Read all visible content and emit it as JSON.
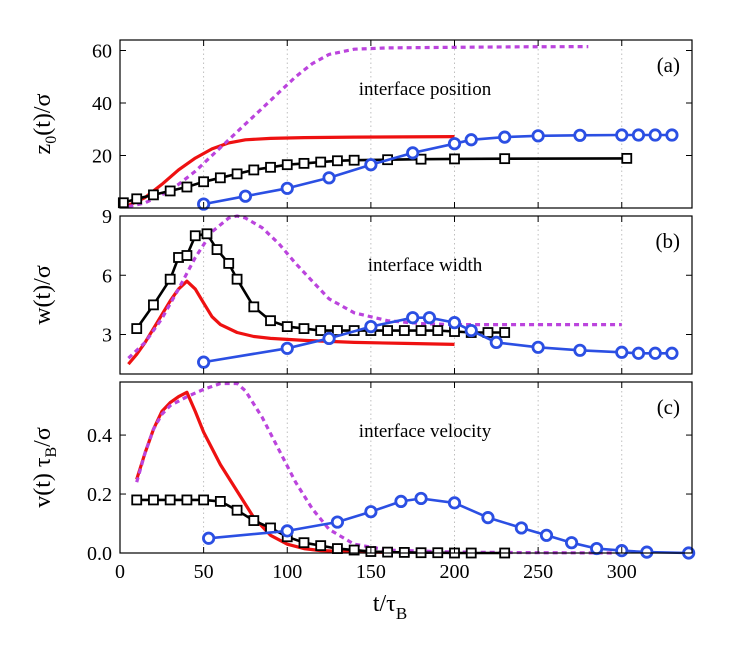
{
  "chart_data": {
    "type": "line",
    "xlabel": "t/τ",
    "xlabel_sub": "B",
    "xlim": [
      0,
      342
    ],
    "x_ticks": [
      0,
      50,
      100,
      150,
      200,
      250,
      300
    ],
    "panels": [
      {
        "tag": "(a)",
        "annotation": "interface position",
        "ylabel": "z",
        "ylabel_sub": "0",
        "ylabel_rest": "(t)/σ",
        "ylim": [
          0,
          64
        ],
        "y_ticks": [
          20,
          40,
          60
        ],
        "series": [
          {
            "name": "red",
            "color": "#ee1111",
            "style": "solid",
            "marker": "none",
            "x": [
              5,
              15,
              25,
              35,
              45,
              55,
              65,
              75,
              90,
              110,
              140,
              170,
              200
            ],
            "y": [
              1,
              4,
              9,
              14.5,
              19,
              22.5,
              24.8,
              26,
              26.5,
              26.8,
              27.0,
              27.1,
              27.2
            ]
          },
          {
            "name": "magenta-dashed",
            "color": "#bb44dd",
            "style": "dashed",
            "marker": "none",
            "x": [
              5,
              15,
              25,
              35,
              45,
              55,
              65,
              75,
              85,
              95,
              105,
              115,
              125,
              140,
              160,
              200,
              240,
              280
            ],
            "y": [
              0.5,
              2,
              5,
              9,
              14,
              20,
              26,
              32,
              38,
              44,
              50,
              55,
              58.5,
              60.5,
              61,
              61.2,
              61.4,
              61.5
            ]
          },
          {
            "name": "black-squares",
            "color": "#000000",
            "style": "solid",
            "marker": "square",
            "x": [
              2,
              10,
              20,
              30,
              40,
              50,
              60,
              70,
              80,
              90,
              100,
              110,
              120,
              130,
              140,
              160,
              180,
              200,
              230,
              303
            ],
            "y": [
              2,
              3.5,
              5,
              6.5,
              8,
              10,
              11.5,
              13,
              14.5,
              15.5,
              16.5,
              17,
              17.5,
              18,
              18.2,
              18.4,
              18.6,
              18.7,
              18.8,
              18.9
            ]
          },
          {
            "name": "blue-circles",
            "color": "#2b4fe3",
            "style": "solid",
            "marker": "circle",
            "x": [
              50,
              75,
              100,
              125,
              150,
              175,
              200,
              210,
              230,
              250,
              275,
              300,
              310,
              320,
              330
            ],
            "y": [
              1.5,
              4.5,
              7.5,
              11.5,
              16.5,
              21,
              24.5,
              26,
              27,
              27.5,
              27.7,
              27.8,
              27.8,
              27.8,
              27.8
            ]
          }
        ]
      },
      {
        "tag": "(b)",
        "annotation": "interface width",
        "ylabel": "w(t)/σ",
        "ylim": [
          1.0,
          9.0
        ],
        "y_ticks": [
          3,
          6,
          9
        ],
        "series": [
          {
            "name": "red",
            "color": "#ee1111",
            "style": "solid",
            "marker": "none",
            "x": [
              5,
              10,
              15,
              20,
              25,
              30,
              35,
              40,
              45,
              50,
              55,
              60,
              70,
              80,
              90,
              110,
              140,
              170,
              200
            ],
            "y": [
              1.5,
              2.0,
              2.6,
              3.3,
              4.0,
              4.7,
              5.3,
              5.7,
              5.3,
              4.6,
              3.9,
              3.5,
              3.1,
              2.9,
              2.8,
              2.7,
              2.6,
              2.55,
              2.5
            ]
          },
          {
            "name": "magenta-dashed",
            "color": "#bb44dd",
            "style": "dashed",
            "marker": "none",
            "x": [
              5,
              15,
              25,
              35,
              45,
              55,
              65,
              70,
              75,
              85,
              95,
              105,
              115,
              125,
              140,
              160,
              180,
              200,
              250,
              300
            ],
            "y": [
              1.8,
              2.6,
              3.8,
              5.3,
              6.9,
              8.2,
              8.9,
              9.0,
              8.9,
              8.4,
              7.6,
              6.6,
              5.7,
              4.8,
              4.1,
              3.7,
              3.55,
              3.5,
              3.5,
              3.5
            ]
          },
          {
            "name": "black-squares",
            "color": "#000000",
            "style": "solid",
            "marker": "square",
            "x": [
              10,
              20,
              30,
              35,
              40,
              45,
              52,
              58,
              65,
              70,
              80,
              90,
              100,
              110,
              120,
              130,
              140,
              150,
              160,
              170,
              180,
              190,
              200,
              210,
              220,
              230
            ],
            "y": [
              3.3,
              4.5,
              5.8,
              6.9,
              7.0,
              8.0,
              8.1,
              7.3,
              6.6,
              5.8,
              4.4,
              3.7,
              3.4,
              3.3,
              3.2,
              3.2,
              3.2,
              3.2,
              3.2,
              3.2,
              3.2,
              3.2,
              3.15,
              3.1,
              3.1,
              3.1
            ]
          },
          {
            "name": "blue-circles",
            "color": "#2b4fe3",
            "style": "solid",
            "marker": "circle",
            "x": [
              50,
              100,
              125,
              150,
              175,
              185,
              200,
              210,
              225,
              250,
              275,
              300,
              310,
              320,
              330
            ],
            "y": [
              1.6,
              2.3,
              2.8,
              3.4,
              3.85,
              3.85,
              3.6,
              3.2,
              2.6,
              2.35,
              2.2,
              2.1,
              2.05,
              2.05,
              2.05
            ]
          }
        ]
      },
      {
        "tag": "(c)",
        "annotation": "interface velocity",
        "ylabel": "v(t) τ",
        "ylabel_sub": "B",
        "ylabel_rest": "/σ",
        "ylim": [
          0,
          0.58
        ],
        "y_ticks": [
          0.0,
          0.2,
          0.4
        ],
        "y_tick_labels": [
          "0.0",
          "0.2",
          "0.4"
        ],
        "series": [
          {
            "name": "red",
            "color": "#ee1111",
            "style": "solid",
            "marker": "none",
            "x": [
              10,
              15,
              20,
              25,
              30,
              35,
              40,
              45,
              50,
              60,
              70,
              80,
              90,
              100,
              110,
              120,
              140,
              160
            ],
            "y": [
              0.25,
              0.34,
              0.42,
              0.48,
              0.51,
              0.53,
              0.545,
              0.48,
              0.41,
              0.3,
              0.21,
              0.12,
              0.06,
              0.03,
              0.015,
              0.008,
              0.004,
              0.002
            ]
          },
          {
            "name": "magenta-dashed",
            "color": "#bb44dd",
            "style": "dashed",
            "marker": "none",
            "x": [
              10,
              15,
              20,
              25,
              30,
              40,
              50,
              60,
              70,
              75,
              85,
              95,
              105,
              115,
              125,
              140,
              160,
              200,
              250,
              300
            ],
            "y": [
              0.24,
              0.34,
              0.42,
              0.47,
              0.5,
              0.53,
              0.555,
              0.575,
              0.575,
              0.55,
              0.46,
              0.35,
              0.24,
              0.15,
              0.08,
              0.03,
              0.01,
              0.003,
              0.001,
              0.0
            ]
          },
          {
            "name": "black-squares",
            "color": "#000000",
            "style": "solid",
            "marker": "square",
            "x": [
              10,
              20,
              30,
              40,
              50,
              60,
              70,
              80,
              90,
              100,
              110,
              120,
              130,
              140,
              150,
              160,
              170,
              180,
              190,
              200,
              210,
              230
            ],
            "y": [
              0.18,
              0.18,
              0.18,
              0.18,
              0.18,
              0.175,
              0.145,
              0.11,
              0.085,
              0.055,
              0.035,
              0.025,
              0.015,
              0.01,
              0.005,
              0.003,
              0.002,
              0.001,
              0.001,
              0.0,
              0.0,
              0.0
            ]
          },
          {
            "name": "blue-circles",
            "color": "#2b4fe3",
            "style": "solid",
            "marker": "circle",
            "x": [
              53,
              100,
              130,
              150,
              168,
              180,
              200,
              220,
              240,
              255,
              270,
              285,
              300,
              315,
              340
            ],
            "y": [
              0.05,
              0.075,
              0.105,
              0.14,
              0.175,
              0.185,
              0.17,
              0.12,
              0.085,
              0.06,
              0.035,
              0.015,
              0.008,
              0.003,
              0.0
            ]
          }
        ]
      }
    ]
  }
}
